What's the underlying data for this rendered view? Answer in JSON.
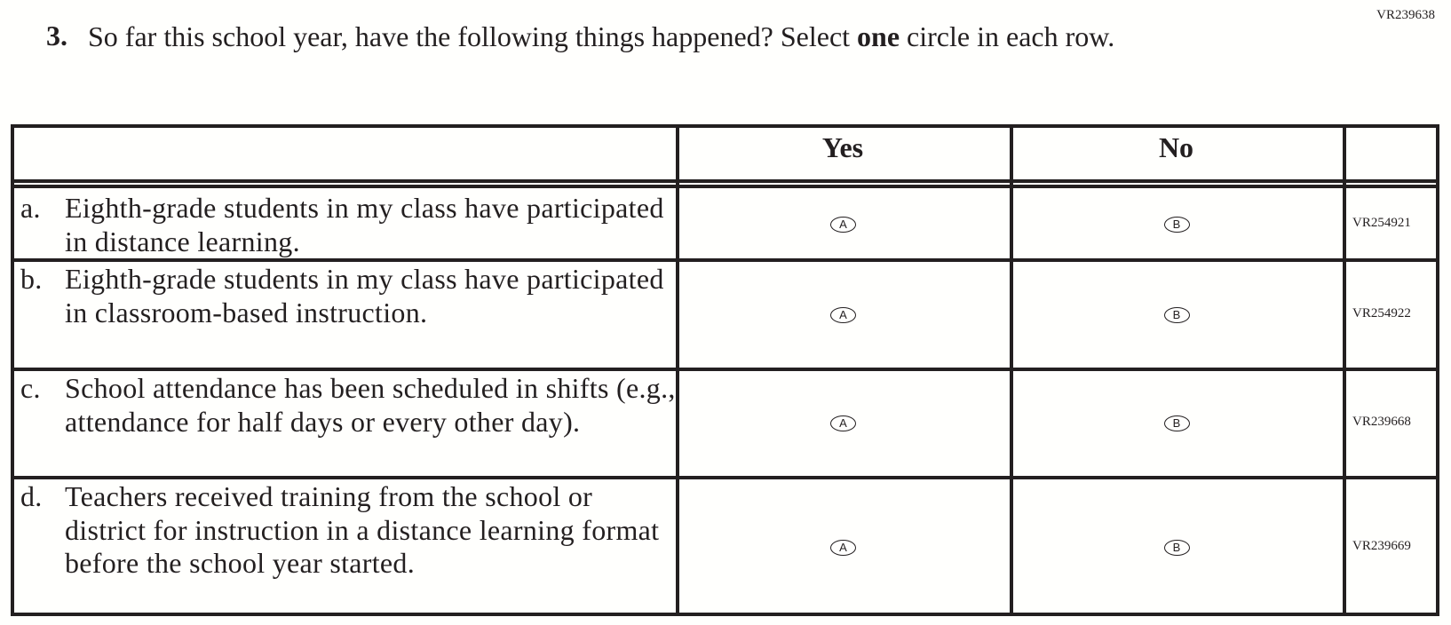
{
  "question": {
    "code": "VR239638",
    "number": "3.",
    "text_before": "So far this school year, have the following things happened? Select ",
    "text_bold": "one",
    "text_after": " circle in each row."
  },
  "table": {
    "headers": [
      "",
      "Yes",
      "No",
      ""
    ],
    "rows": [
      {
        "letter": "a.",
        "text": "Eighth-grade students in my class have participated in distance learning.",
        "yes": "A",
        "no": "B",
        "code": "VR254921"
      },
      {
        "letter": "b.",
        "text": "Eighth-grade students in my class have participated in classroom-based instruction.",
        "yes": "A",
        "no": "B",
        "code": "VR254922"
      },
      {
        "letter": "c.",
        "text": "School attendance has been scheduled in shifts (e.g., attendance for half days or every other day).",
        "yes": "A",
        "no": "B",
        "code": "VR239668"
      },
      {
        "letter": "d.",
        "text": "Teachers received training from the school or district for instruction in a distance learning format before the school year started.",
        "yes": "A",
        "no": "B",
        "code": "VR239669"
      }
    ]
  }
}
